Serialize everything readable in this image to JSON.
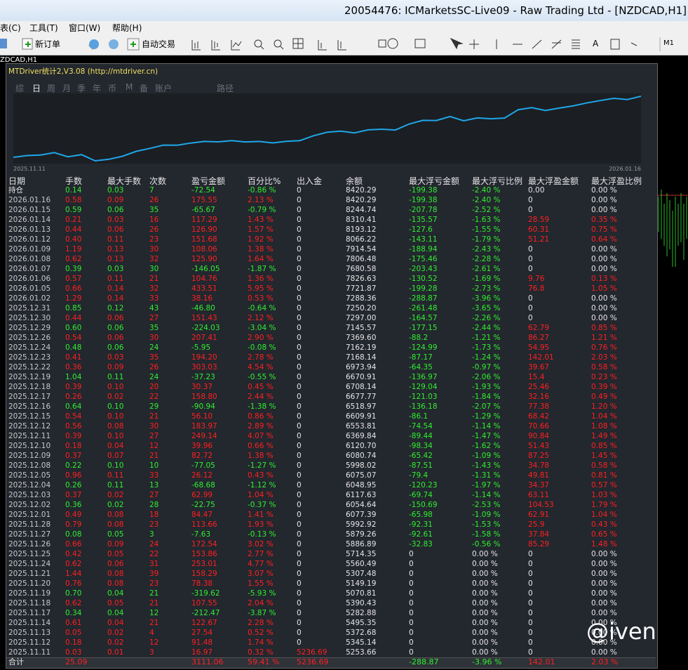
{
  "window": {
    "title": "20054476: ICMarketsSC-Live09 - Raw Trading Ltd - [NZDCAD,H1]"
  },
  "menu": [
    "表(C)",
    "工具(T)",
    "窗口(W)",
    "帮助(H)"
  ],
  "toolbar": {
    "new_order": "新订单",
    "auto_trading": "自动交易",
    "text_tool": "A",
    "timeframe": "M1"
  },
  "chart_tab": "ZDCAD,H1",
  "panel": {
    "title": "MTDriver统计2,V3.08 (http://mtdriver.cn)",
    "tabs": [
      "综",
      "日",
      "周",
      "月",
      "季",
      "年",
      "币",
      "M",
      "备",
      "账户",
      "路径"
    ],
    "active_tab": 1,
    "equity": {
      "start_label": "2025.11.11",
      "end_label": "2026.01.16",
      "line_color": "#1fa6e8"
    },
    "table": {
      "headers": [
        "日期",
        "手数",
        "最大手数",
        "次数",
        "盈亏金额",
        "百分比%",
        "出入金",
        "余额",
        "最大浮亏金额",
        "最大浮亏比例",
        "最大浮盈金额",
        "最大浮盈比例"
      ],
      "rows": [
        [
          "持仓",
          "0.14",
          "0.03",
          "7",
          "-72.54",
          "-0.86 %",
          "0",
          "8420.29",
          "-199.38",
          "-2.40 %",
          "0.00",
          "0.00 %"
        ],
        [
          "2026.01.16",
          "0.58",
          "0.09",
          "26",
          "175.55",
          "2.13 %",
          "0",
          "8420.29",
          "-199.38",
          "-2.40 %",
          "0",
          "0.00 %"
        ],
        [
          "2026.01.15",
          "0.59",
          "0.06",
          "35",
          "-65.67",
          "-0.79 %",
          "0",
          "8244.74",
          "-207.78",
          "-2.52 %",
          "0",
          "0.00 %"
        ],
        [
          "2026.01.14",
          "0.21",
          "0.03",
          "16",
          "117.29",
          "1.43 %",
          "0",
          "8310.41",
          "-135.57",
          "-1.63 %",
          "28.59",
          "0.35 %"
        ],
        [
          "2026.01.13",
          "0.44",
          "0.06",
          "26",
          "126.90",
          "1.57 %",
          "0",
          "8193.12",
          "-127.6",
          "-1.55 %",
          "60.31",
          "0.75 %"
        ],
        [
          "2026.01.12",
          "0.40",
          "0.11",
          "23",
          "151.68",
          "1.92 %",
          "0",
          "8066.22",
          "-143.11",
          "-1.79 %",
          "51.21",
          "0.64 %"
        ],
        [
          "2026.01.09",
          "1.19",
          "0.13",
          "30",
          "108.06",
          "1.38 %",
          "0",
          "7914.54",
          "-188.94",
          "-2.43 %",
          "0",
          "0.00 %"
        ],
        [
          "2026.01.08",
          "0.62",
          "0.13",
          "32",
          "125.90",
          "1.64 %",
          "0",
          "7806.48",
          "-175.46",
          "-2.28 %",
          "0",
          "0.00 %"
        ],
        [
          "2026.01.07",
          "0.39",
          "0.03",
          "30",
          "-146.05",
          "-1.87 %",
          "0",
          "7680.58",
          "-203.43",
          "-2.61 %",
          "0",
          "0.00 %"
        ],
        [
          "2026.01.06",
          "0.57",
          "0.11",
          "21",
          "104.76",
          "1.36 %",
          "0",
          "7826.63",
          "-130.52",
          "-1.69 %",
          "9.76",
          "0.13 %"
        ],
        [
          "2026.01.05",
          "0.66",
          "0.14",
          "32",
          "433.51",
          "5.95 %",
          "0",
          "7721.87",
          "-199.28",
          "-2.73 %",
          "76.8",
          "1.05 %"
        ],
        [
          "2026.01.02",
          "1.29",
          "0.14",
          "33",
          "38.16",
          "0.53 %",
          "0",
          "7288.36",
          "-288.87",
          "-3.96 %",
          "0",
          "0.00 %"
        ],
        [
          "2025.12.31",
          "0.85",
          "0.12",
          "43",
          "-46.80",
          "-0.64 %",
          "0",
          "7250.20",
          "-261.48",
          "-3.65 %",
          "0",
          "0.00 %"
        ],
        [
          "2025.12.30",
          "0.44",
          "0.06",
          "27",
          "151.43",
          "2.12 %",
          "0",
          "7297.00",
          "-164.57",
          "-2.26 %",
          "0",
          "0.00 %"
        ],
        [
          "2025.12.29",
          "0.60",
          "0.06",
          "35",
          "-224.03",
          "-3.04 %",
          "0",
          "7145.57",
          "-177.15",
          "-2.44 %",
          "62.79",
          "0.85 %"
        ],
        [
          "2025.12.26",
          "0.54",
          "0.06",
          "30",
          "207.41",
          "2.90 %",
          "0",
          "7369.60",
          "-88.2",
          "-1.21 %",
          "86.27",
          "1.21 %"
        ],
        [
          "2025.12.24",
          "0.48",
          "0.06",
          "24",
          "-5.95",
          "-0.08 %",
          "0",
          "7162.19",
          "-124.99",
          "-1.73 %",
          "54.95",
          "0.76 %"
        ],
        [
          "2025.12.23",
          "0.41",
          "0.03",
          "35",
          "194.20",
          "2.78 %",
          "0",
          "7168.14",
          "-87.17",
          "-1.24 %",
          "142.01",
          "2.03 %"
        ],
        [
          "2025.12.22",
          "0.36",
          "0.09",
          "26",
          "303.03",
          "4.54 %",
          "0",
          "6973.94",
          "-64.35",
          "-0.97 %",
          "39.67",
          "0.58 %"
        ],
        [
          "2025.12.19",
          "1.04",
          "0.11",
          "24",
          "-37.23",
          "-0.55 %",
          "0",
          "6670.91",
          "-136.97",
          "-2.06 %",
          "15.4",
          "0.23 %"
        ],
        [
          "2025.12.18",
          "0.39",
          "0.10",
          "20",
          "30.37",
          "0.45 %",
          "0",
          "6708.14",
          "-129.04",
          "-1.93 %",
          "25.46",
          "0.39 %"
        ],
        [
          "2025.12.17",
          "0.26",
          "0.02",
          "22",
          "158.80",
          "2.44 %",
          "0",
          "6677.77",
          "-121.03",
          "-1.84 %",
          "32.16",
          "0.49 %"
        ],
        [
          "2025.12.16",
          "0.64",
          "0.10",
          "29",
          "-90.94",
          "-1.38 %",
          "0",
          "6518.97",
          "-136.18",
          "-2.07 %",
          "77.38",
          "1.20 %"
        ],
        [
          "2025.12.15",
          "0.54",
          "0.10",
          "21",
          "56.10",
          "0.86 %",
          "0",
          "6609.91",
          "-86.1",
          "-1.29 %",
          "68.42",
          "1.04 %"
        ],
        [
          "2025.12.12",
          "0.56",
          "0.08",
          "30",
          "183.97",
          "2.89 %",
          "0",
          "6553.81",
          "-74.54",
          "-1.14 %",
          "70.66",
          "1.08 %"
        ],
        [
          "2025.12.11",
          "0.39",
          "0.10",
          "27",
          "249.14",
          "4.07 %",
          "0",
          "6369.84",
          "-89.44",
          "-1.47 %",
          "90.84",
          "1.49 %"
        ],
        [
          "2025.12.10",
          "0.18",
          "0.04",
          "12",
          "39.96",
          "0.66 %",
          "0",
          "6120.70",
          "-98.34",
          "-1.62 %",
          "51.43",
          "0.85 %"
        ],
        [
          "2025.12.09",
          "0.37",
          "0.07",
          "21",
          "82.72",
          "1.38 %",
          "0",
          "6080.74",
          "-65.42",
          "-1.09 %",
          "87.25",
          "1.45 %"
        ],
        [
          "2025.12.08",
          "0.22",
          "0.10",
          "10",
          "-77.05",
          "-1.27 %",
          "0",
          "5998.02",
          "-87.51",
          "-1.43 %",
          "34.78",
          "0.58 %"
        ],
        [
          "2025.12.05",
          "0.96",
          "0.11",
          "33",
          "26.12",
          "0.43 %",
          "0",
          "6075.07",
          "-79.4",
          "-1.31 %",
          "49.81",
          "0.81 %"
        ],
        [
          "2025.12.04",
          "0.26",
          "0.11",
          "13",
          "-68.68",
          "-1.12 %",
          "0",
          "6048.95",
          "-120.23",
          "-1.97 %",
          "34.37",
          "0.57 %"
        ],
        [
          "2025.12.03",
          "0.37",
          "0.02",
          "27",
          "62.99",
          "1.04 %",
          "0",
          "6117.63",
          "-69.74",
          "-1.14 %",
          "63.11",
          "1.03 %"
        ],
        [
          "2025.12.02",
          "0.36",
          "0.02",
          "28",
          "-22.75",
          "-0.37 %",
          "0",
          "6054.64",
          "-150.69",
          "-2.53 %",
          "104.53",
          "1.79 %"
        ],
        [
          "2025.12.01",
          "0.49",
          "0.08",
          "18",
          "84.47",
          "1.41 %",
          "0",
          "6077.39",
          "-65.98",
          "-1.09 %",
          "62.91",
          "1.04 %"
        ],
        [
          "2025.11.28",
          "0.79",
          "0.08",
          "23",
          "113.66",
          "1.93 %",
          "0",
          "5992.92",
          "-92.31",
          "-1.53 %",
          "25.9",
          "0.43 %"
        ],
        [
          "2025.11.27",
          "0.08",
          "0.05",
          "3",
          "-7.63",
          "-0.13 %",
          "0",
          "5879.26",
          "-92.61",
          "-1.58 %",
          "37.84",
          "0.65 %"
        ],
        [
          "2025.11.26",
          "0.66",
          "0.09",
          "24",
          "172.54",
          "3.02 %",
          "0",
          "5886.89",
          "-32.83",
          "-0.56 %",
          "85.29",
          "1.48 %"
        ],
        [
          "2025.11.25",
          "0.42",
          "0.05",
          "22",
          "153.86",
          "2.77 %",
          "0",
          "5714.35",
          "0",
          "0.00 %",
          "0",
          "0.00 %"
        ],
        [
          "2025.11.24",
          "0.62",
          "0.06",
          "31",
          "253.01",
          "4.77 %",
          "0",
          "5560.49",
          "0",
          "0.00 %",
          "0",
          "0.00 %"
        ],
        [
          "2025.11.21",
          "1.44",
          "0.08",
          "39",
          "158.29",
          "3.07 %",
          "0",
          "5307.48",
          "0",
          "0.00 %",
          "0",
          "0.00 %"
        ],
        [
          "2025.11.20",
          "0.76",
          "0.08",
          "23",
          "78.38",
          "1.55 %",
          "0",
          "5149.19",
          "0",
          "0.00 %",
          "0",
          "0.00 %"
        ],
        [
          "2025.11.19",
          "0.70",
          "0.04",
          "21",
          "-319.62",
          "-5.93 %",
          "0",
          "5070.81",
          "0",
          "0.00 %",
          "0",
          "0.00 %"
        ],
        [
          "2025.11.18",
          "0.62",
          "0.05",
          "21",
          "107.55",
          "2.04 %",
          "0",
          "5390.43",
          "0",
          "0.00 %",
          "0",
          "0.00 %"
        ],
        [
          "2025.11.17",
          "0.34",
          "0.04",
          "12",
          "-212.47",
          "-3.87 %",
          "0",
          "5282.88",
          "0",
          "0.00 %",
          "0",
          "0.00 %"
        ],
        [
          "2025.11.14",
          "0.61",
          "0.04",
          "21",
          "122.67",
          "2.28 %",
          "0",
          "5495.35",
          "0",
          "0.00 %",
          "0",
          "0.00 %"
        ],
        [
          "2025.11.13",
          "0.05",
          "0.02",
          "4",
          "27.54",
          "0.52 %",
          "0",
          "5372.68",
          "0",
          "0.00 %",
          "0",
          "0.00 %"
        ],
        [
          "2025.11.12",
          "0.18",
          "0.02",
          "12",
          "91.48",
          "1.74 %",
          "0",
          "5345.14",
          "0",
          "0.00 %",
          "0",
          "0.00 %"
        ],
        [
          "2025.11.11",
          "0.03",
          "0.01",
          "3",
          "16.97",
          "0.32 %",
          "5236.69",
          "5253.66",
          "0",
          "0.00 %",
          "0",
          "0.00 %"
        ],
        [
          "合计",
          "25.09",
          null,
          null,
          "3111.06",
          "59.41 %",
          "5236.69",
          null,
          "-288.87",
          "-3.96 %",
          "142.01",
          "2.03 %"
        ]
      ]
    }
  },
  "watermark": "@iven"
}
